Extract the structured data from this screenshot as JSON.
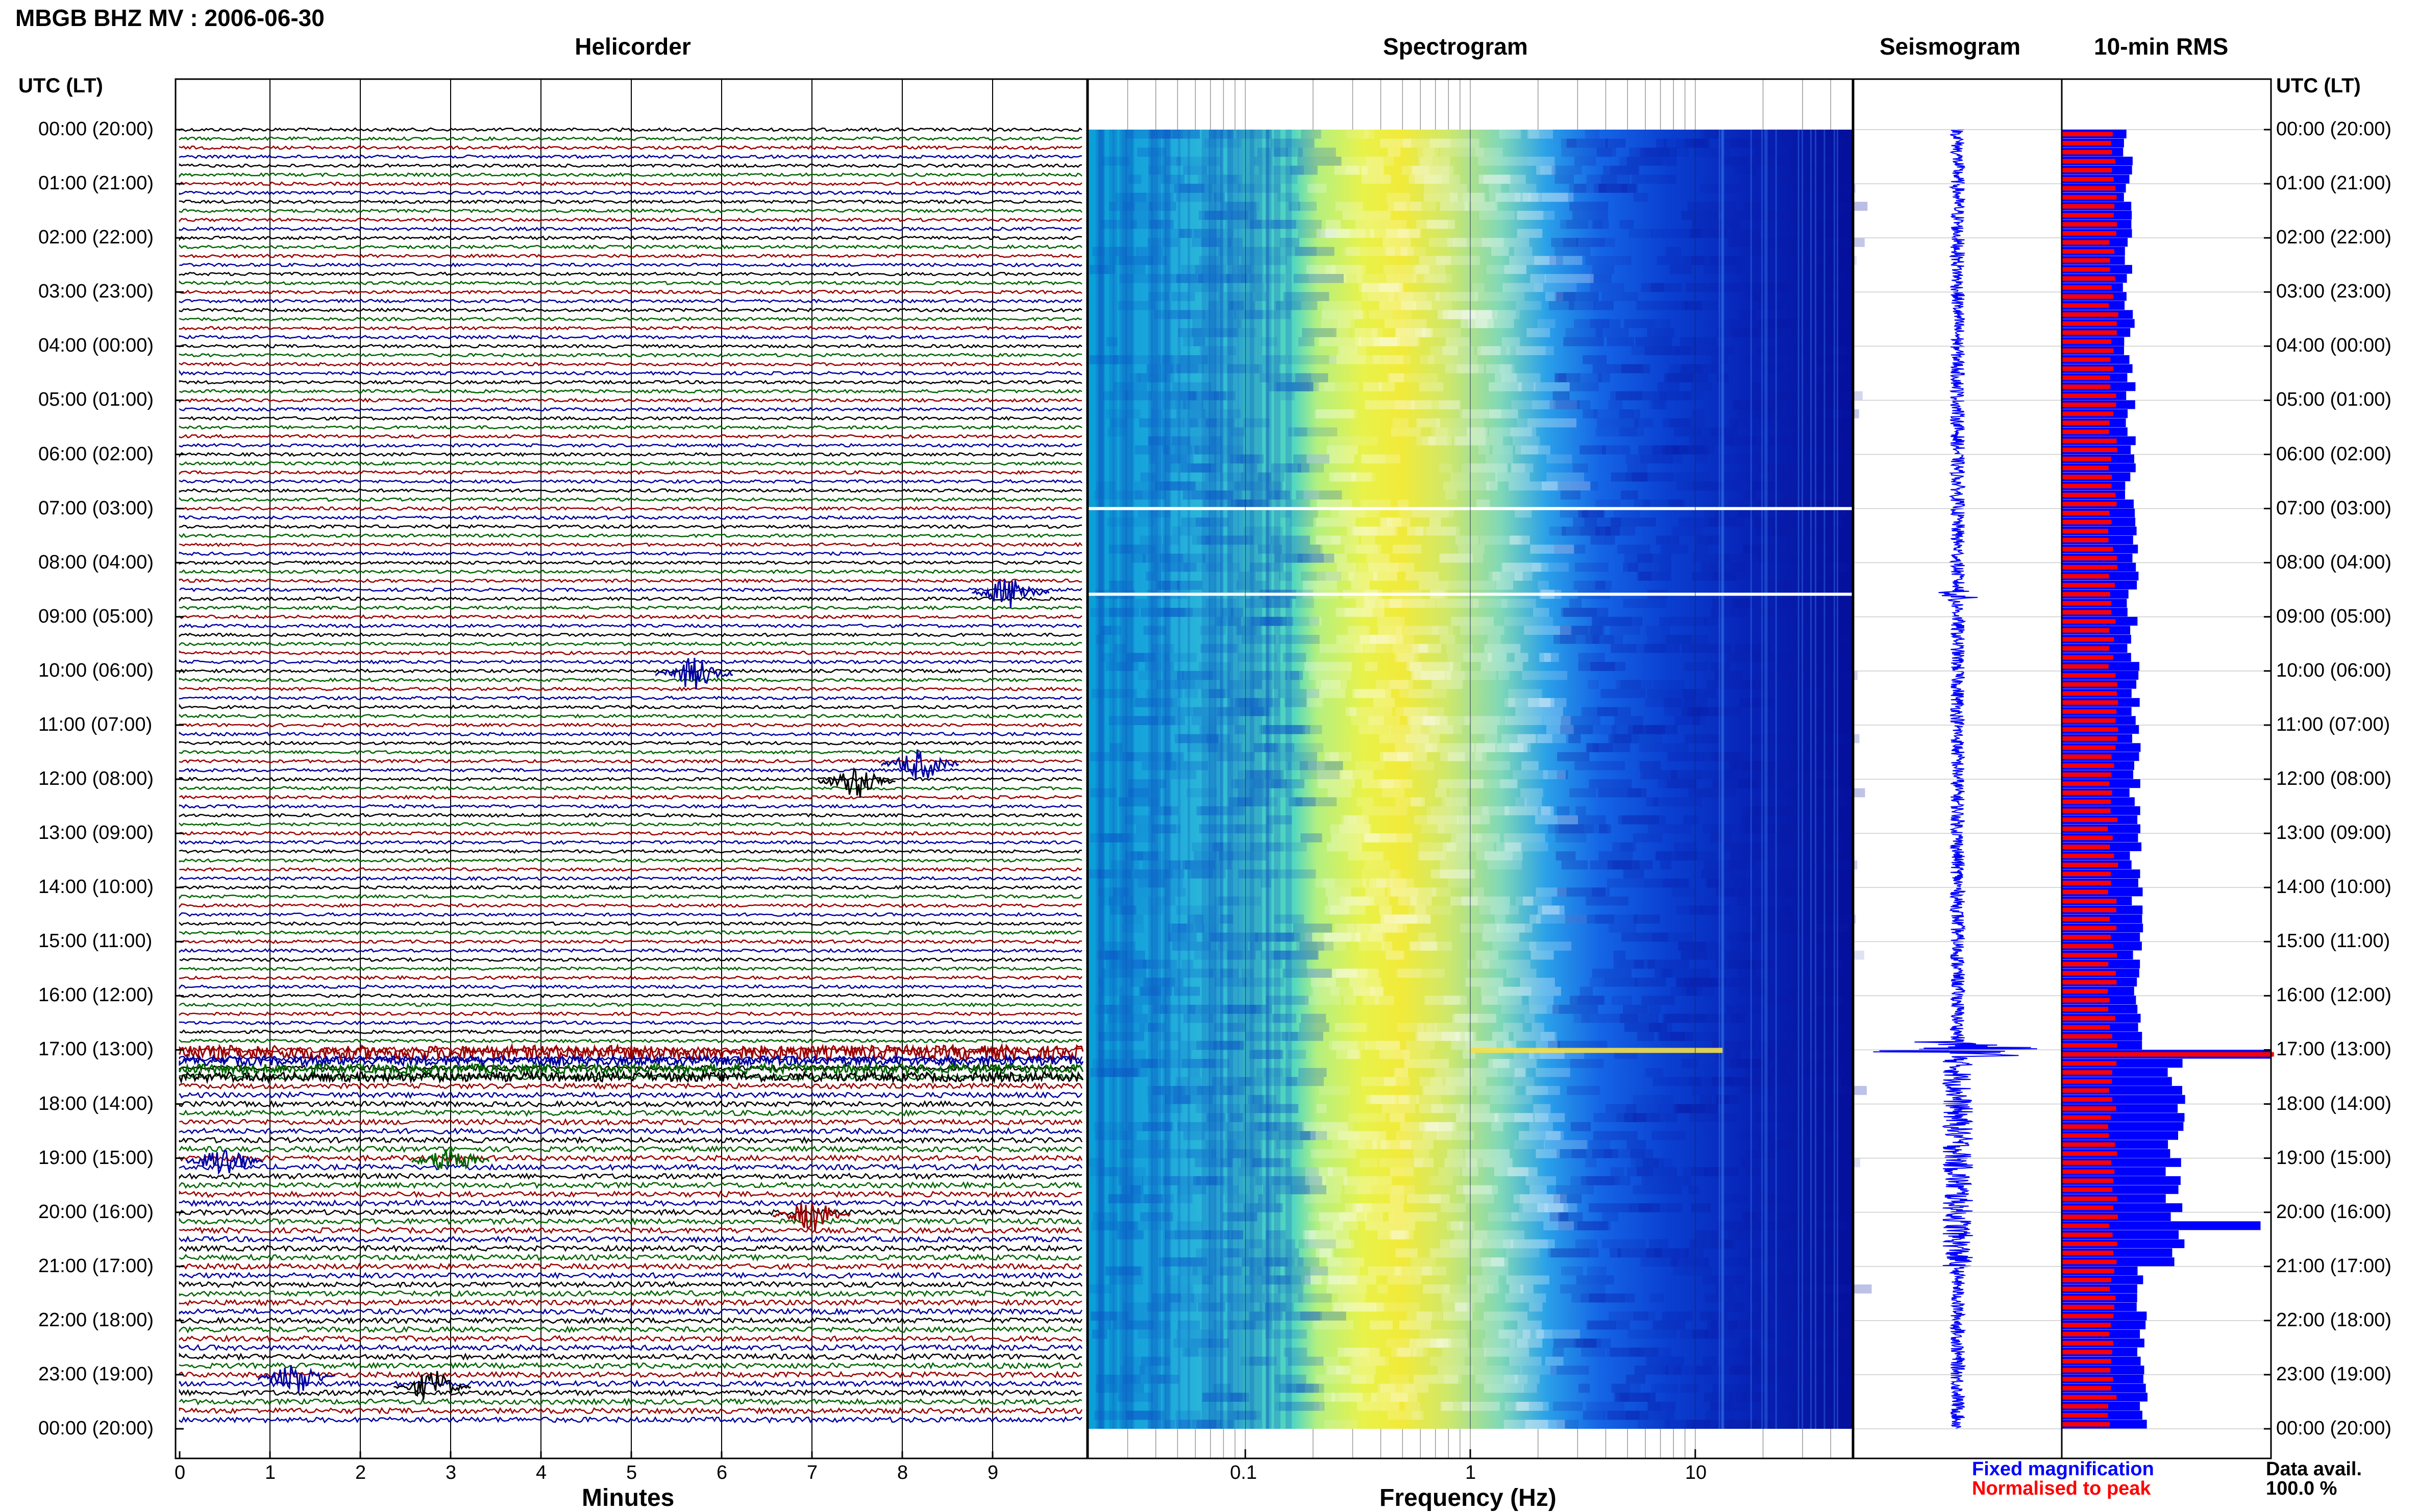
{
  "title": "MBGB BHZ MV : 2006-06-30",
  "panels": {
    "helicorder": "Helicorder",
    "spectrogram": "Spectrogram",
    "seismogram": "Seismogram",
    "rms": "10-min RMS"
  },
  "utc_header": "UTC (LT)",
  "time_labels": [
    "00:00 (20:00)",
    "01:00 (21:00)",
    "02:00 (22:00)",
    "03:00 (23:00)",
    "04:00 (00:00)",
    "05:00 (01:00)",
    "06:00 (02:00)",
    "07:00 (03:00)",
    "08:00 (04:00)",
    "09:00 (05:00)",
    "10:00 (06:00)",
    "11:00 (07:00)",
    "12:00 (08:00)",
    "13:00 (09:00)",
    "14:00 (10:00)",
    "15:00 (11:00)",
    "16:00 (12:00)",
    "17:00 (13:00)",
    "18:00 (14:00)",
    "19:00 (15:00)",
    "20:00 (16:00)",
    "21:00 (17:00)",
    "22:00 (18:00)",
    "23:00 (19:00)",
    "00:00 (20:00)"
  ],
  "x_minutes": {
    "label": "Minutes",
    "ticks": [
      "0",
      "1",
      "2",
      "3",
      "4",
      "5",
      "6",
      "7",
      "8",
      "9"
    ]
  },
  "x_frequency": {
    "label": "Frequency (Hz)",
    "ticks": [
      "0.1",
      "1",
      "10"
    ]
  },
  "legend": {
    "fixed": {
      "label": "Fixed magnification",
      "color": "#0000ff"
    },
    "normalised": {
      "label": "Normalised to peak",
      "color": "#ff0000"
    }
  },
  "data_avail": {
    "label": "Data avail.",
    "value": "100.0 %"
  },
  "chart_data": [
    {
      "type": "line",
      "title": "Helicorder",
      "xlabel": "Minutes",
      "xlim": [
        0,
        10
      ],
      "rows": 144,
      "row_minutes": 10,
      "colors": [
        "#000000",
        "#006400",
        "#9b0000",
        "#0000a0"
      ],
      "events": [
        {
          "time": "08:30",
          "minute": 9.2,
          "color": "#0000a0"
        },
        {
          "time": "10:00",
          "minute": 5.7,
          "color": "#0000a0"
        },
        {
          "time": "11:40",
          "minute": 8.2,
          "color": "#0000a0"
        },
        {
          "time": "12:00",
          "minute": 7.5,
          "color": "#000000"
        },
        {
          "time": "17:00",
          "minute": 5.0,
          "color": "#9b0000",
          "note": "large event, 17:00-17:10"
        },
        {
          "time": "19:00",
          "minute": 0.5,
          "color": "#0000a0"
        },
        {
          "time": "19:00",
          "minute": 3.0,
          "color": "#006400"
        },
        {
          "time": "20:00",
          "minute": 7.0,
          "color": "#9b0000"
        },
        {
          "time": "23:00",
          "minute": 1.3,
          "color": "#0000a0"
        },
        {
          "time": "23:10",
          "minute": 2.8,
          "color": "#000000"
        }
      ]
    },
    {
      "type": "heatmap",
      "title": "Spectrogram",
      "xlabel": "Frequency (Hz)",
      "x_scale": "log",
      "xlim": [
        0.02,
        50
      ],
      "colormap": "jet",
      "dominant_band_hz": [
        0.2,
        0.8
      ],
      "gaps": [
        "07:00",
        "08:35"
      ]
    },
    {
      "type": "line",
      "title": "Seismogram",
      "peak_time": "17:00"
    },
    {
      "type": "bar",
      "title": "10-min RMS",
      "categories_count": 144,
      "series": [
        {
          "name": "Fixed magnification",
          "color": "#0000ff"
        },
        {
          "name": "Normalised to peak",
          "color": "#ff0000"
        }
      ],
      "peak_time": "17:00"
    }
  ]
}
